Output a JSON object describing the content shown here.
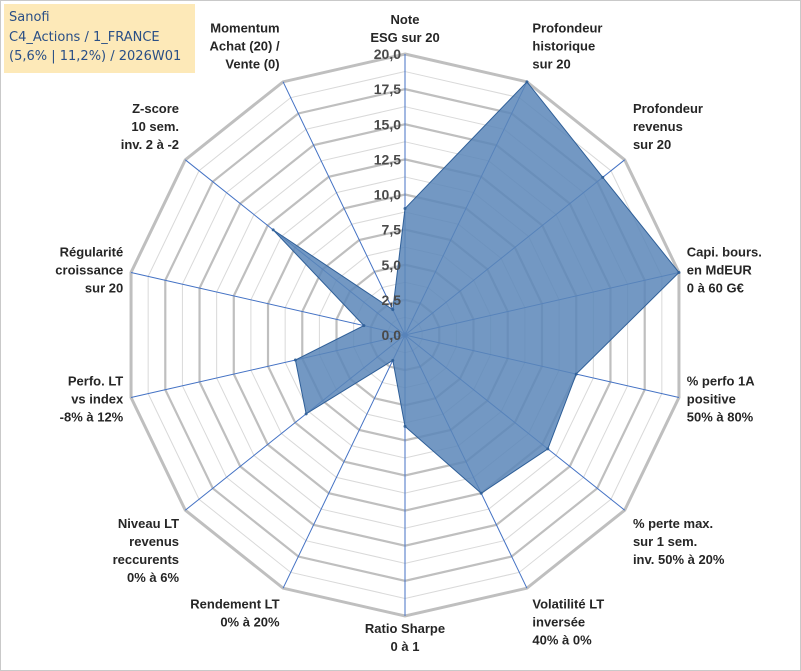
{
  "title_box": {
    "line1": "Sanofi",
    "line2": "C4_Actions / 1_FRANCE",
    "line3": "(5,6% | 11,2%) / 2026W01"
  },
  "colors": {
    "fill": "#5a86b8",
    "stroke": "#2f5f98",
    "grid": "#bfbfbf",
    "spoke": "#4472c4",
    "title_bg": "#fde9b8",
    "title_text": "#2a4f86"
  },
  "chart_data": {
    "type": "radar",
    "scale": {
      "min": 0,
      "max": 20,
      "step": 2.5
    },
    "tick_labels": [
      "0,0",
      "2,5",
      "5,0",
      "7,5",
      "10,0",
      "12,5",
      "15,0",
      "17,5",
      "20,0"
    ],
    "axes": [
      {
        "label": [
          "Note",
          "ESG sur 20"
        ],
        "value": 9
      },
      {
        "label": [
          "Profondeur",
          "historique",
          "sur 20"
        ],
        "value": 20
      },
      {
        "label": [
          "Profondeur",
          "revenus",
          "sur 20"
        ],
        "value": 18
      },
      {
        "label": [
          "Capi. bours.",
          "en MdEUR",
          "0 à 60 G€"
        ],
        "value": 20
      },
      {
        "label": [
          "% perfo 1A",
          "positive",
          "50% à 80%"
        ],
        "value": 12.5
      },
      {
        "label": [
          "% perte max.",
          "sur 1 sem.",
          "inv. 50% à 20%"
        ],
        "value": 13
      },
      {
        "label": [
          "Volatilité LT",
          "inversée",
          "40% à 0%"
        ],
        "value": 12.5
      },
      {
        "label": [
          "Ratio Sharpe",
          "0 à 1"
        ],
        "value": 6.5
      },
      {
        "label": [
          "Rendement LT",
          "0% à 20%"
        ],
        "value": 2
      },
      {
        "label": [
          "Niveau LT",
          "revenus",
          "reccurents",
          "0% à 6%"
        ],
        "value": 9
      },
      {
        "label": [
          "Perfo. LT",
          "vs index",
          "-8% à 12%"
        ],
        "value": 8
      },
      {
        "label": [
          "Régularité",
          "croissance",
          "sur 20"
        ],
        "value": 3
      },
      {
        "label": [
          "Z-score",
          "10 sem.",
          "inv. 2 à -2"
        ],
        "value": 12
      },
      {
        "label": [
          "Momentum",
          "Achat (20) /",
          "Vente (0)"
        ],
        "value": 2
      }
    ]
  }
}
